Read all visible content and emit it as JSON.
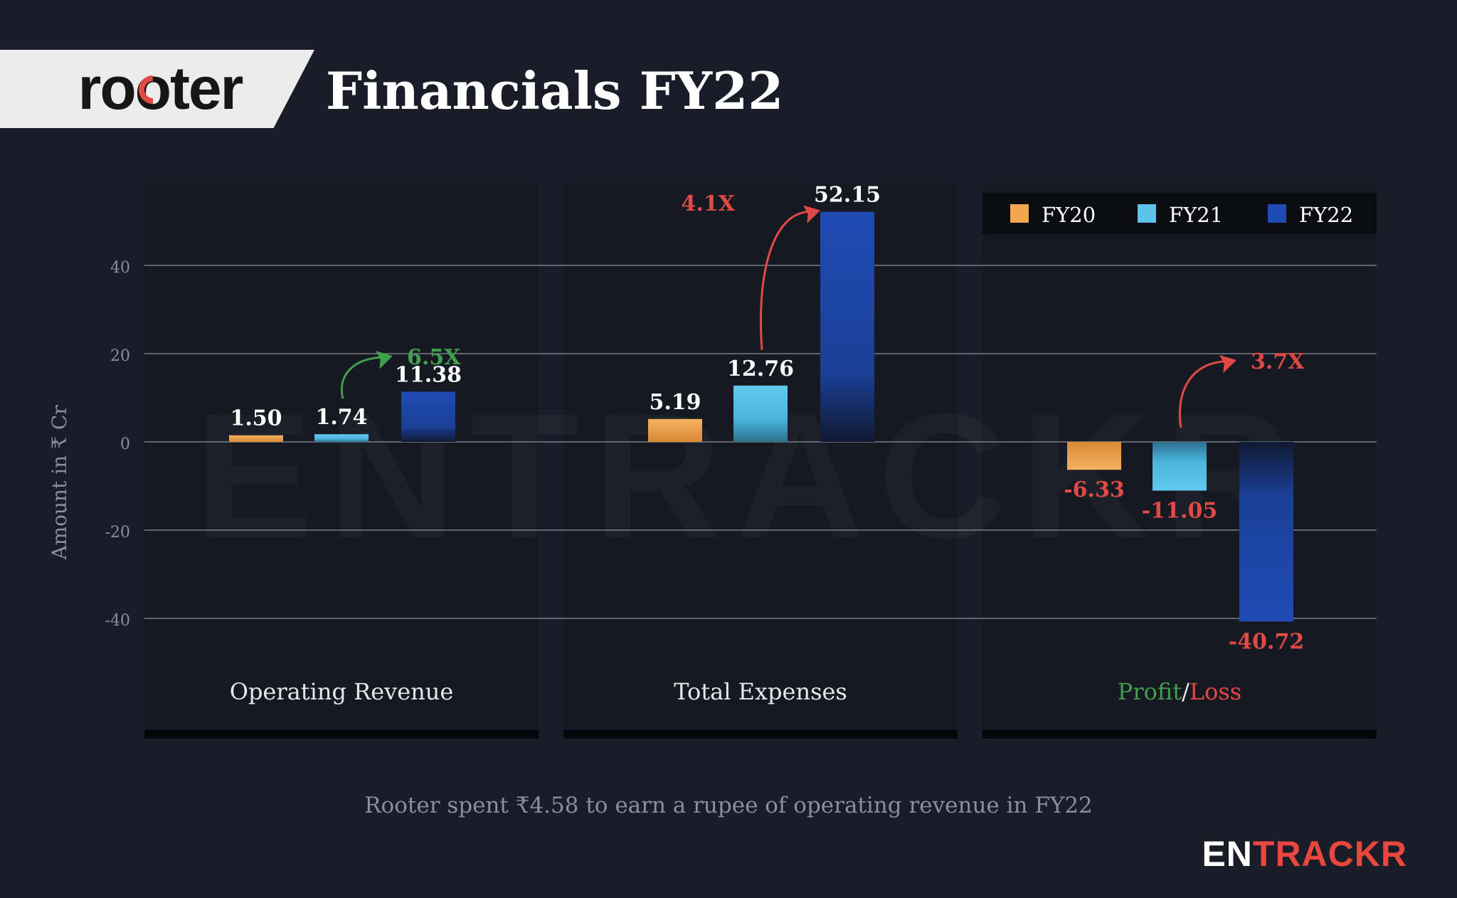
{
  "header": {
    "brand": "rooter",
    "title": "Financials FY22"
  },
  "footer": {
    "caption": "Rooter spent ₹4.58 to earn a rupee of operating revenue in FY22",
    "publisher": {
      "prefix": "EN",
      "suffix": "TRACKR"
    }
  },
  "watermark": "ENTRACKR",
  "colors": {
    "background": "#1a1d27",
    "panel": "#14161f",
    "FY20": "#f2a654",
    "FY21": "#5bc3ea",
    "FY22": "#1f4bb5",
    "growth_good": "#3fa04c",
    "growth_bad": "#e04a45"
  },
  "chart_data": {
    "type": "bar",
    "ylabel": "Amount in ₹ Cr",
    "ylim": [
      -48,
      50
    ],
    "yticks": [
      40,
      20,
      0,
      -20,
      -40
    ],
    "ytick_labels": [
      "40",
      "20",
      "0",
      "-20",
      "-40"
    ],
    "grid": true,
    "legend_position": "top-right",
    "categories": [
      "Operating Revenue",
      "Total Expenses",
      "Profit/Loss"
    ],
    "series": [
      {
        "name": "FY20",
        "values": [
          1.5,
          5.19,
          -6.33
        ],
        "labels": [
          "1.50",
          "5.19",
          "-6.33"
        ]
      },
      {
        "name": "FY21",
        "values": [
          1.74,
          12.76,
          -11.05
        ],
        "labels": [
          "1.74",
          "12.76",
          "-11.05"
        ]
      },
      {
        "name": "FY22",
        "values": [
          11.38,
          52.15,
          -40.72
        ],
        "labels": [
          "11.38",
          "52.15",
          "-40.72"
        ]
      }
    ],
    "category_label_parts": [
      [
        {
          "text": "Operating Revenue",
          "color": "#e8e8e8"
        }
      ],
      [
        {
          "text": "Total Expenses",
          "color": "#e8e8e8"
        }
      ],
      [
        {
          "text": "Profit",
          "color": "#3fa04c"
        },
        {
          "text": "/",
          "color": "#e8e8e8"
        },
        {
          "text": "Loss",
          "color": "#e04a45"
        }
      ]
    ],
    "annotations": [
      {
        "category": 0,
        "text": "6.5X",
        "tone": "good"
      },
      {
        "category": 1,
        "text": "4.1X",
        "tone": "bad"
      },
      {
        "category": 2,
        "text": "3.7X",
        "tone": "bad"
      }
    ]
  }
}
